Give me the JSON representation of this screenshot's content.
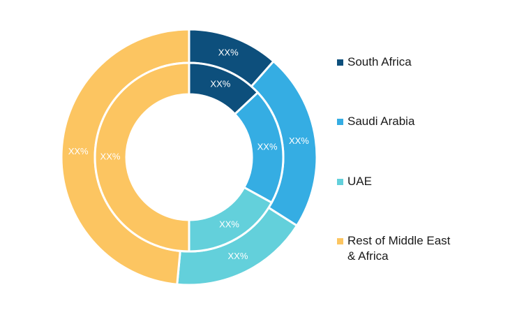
{
  "chart_data": {
    "type": "pie",
    "variant": "nested-donut",
    "categories": [
      "South Africa",
      "Saudi Arabia",
      "UAE",
      "Rest of Middle East & Africa"
    ],
    "colors": [
      "#0d4f7c",
      "#35ade3",
      "#63d0db",
      "#fcc561"
    ],
    "series": [
      {
        "ring": "outer",
        "values": [
          11.5,
          22.5,
          17.5,
          48.5
        ],
        "labels": [
          "XX%",
          "XX%",
          "XX%",
          "XX%"
        ]
      },
      {
        "ring": "inner",
        "values": [
          13,
          20,
          17,
          50
        ],
        "labels": [
          "XX%",
          "XX%",
          "XX%",
          "XX%"
        ]
      }
    ],
    "legend_position": "right",
    "title": ""
  },
  "legend": {
    "items": [
      {
        "label": "South Africa",
        "color": "#0d4f7c"
      },
      {
        "label": "Saudi Arabia",
        "color": "#35ade3"
      },
      {
        "label": "UAE",
        "color": "#63d0db"
      },
      {
        "label": "Rest of Middle East & Africa",
        "color": "#fcc561"
      }
    ]
  }
}
